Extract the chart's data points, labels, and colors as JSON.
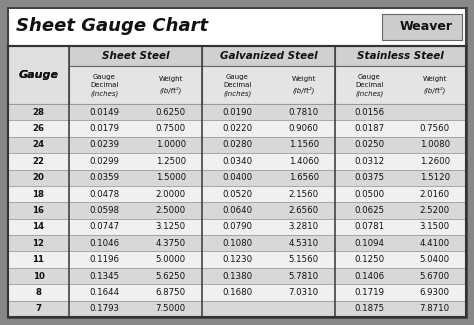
{
  "title": "Sheet Gauge Chart",
  "bg_outer": "#888888",
  "bg_white": "#ffffff",
  "bg_header_group": "#d8d8d8",
  "bg_subheader": "#e8e8e8",
  "bg_row_dark": "#d8d8d8",
  "bg_row_light": "#f0f0f0",
  "gauges": [
    28,
    26,
    24,
    22,
    20,
    18,
    16,
    14,
    12,
    11,
    10,
    8,
    7
  ],
  "sheet_steel_dec": [
    "0.0149",
    "0.0179",
    "0.0239",
    "0.0299",
    "0.0359",
    "0.0478",
    "0.0598",
    "0.0747",
    "0.1046",
    "0.1196",
    "0.1345",
    "0.1644",
    "0.1793"
  ],
  "sheet_steel_wt": [
    "0.6250",
    "0.7500",
    "1.0000",
    "1.2500",
    "1.5000",
    "2.0000",
    "2.5000",
    "3.1250",
    "4.3750",
    "5.0000",
    "5.6250",
    "6.8750",
    "7.5000"
  ],
  "galv_dec": [
    "0.0190",
    "0.0220",
    "0.0280",
    "0.0340",
    "0.0400",
    "0.0520",
    "0.0640",
    "0.0790",
    "0.1080",
    "0.1230",
    "0.1380",
    "0.1680",
    ""
  ],
  "galv_wt": [
    "0.7810",
    "0.9060",
    "1.1560",
    "1.4060",
    "1.6560",
    "2.1560",
    "2.6560",
    "3.2810",
    "4.5310",
    "5.1560",
    "5.7810",
    "7.0310",
    ""
  ],
  "ss_dec": [
    "0.0156",
    "0.0187",
    "0.0250",
    "0.0312",
    "0.0375",
    "0.0500",
    "0.0625",
    "0.0781",
    "0.1094",
    "0.1250",
    "0.1406",
    "0.1719",
    "0.1875"
  ],
  "ss_wt": [
    "",
    "0.7560",
    "1.0080",
    "1.2600",
    "1.5120",
    "2.0160",
    "2.5200",
    "3.1500",
    "4.4100",
    "5.0400",
    "5.6700",
    "6.9300",
    "7.8710"
  ],
  "weight_label": "lb/ft²"
}
